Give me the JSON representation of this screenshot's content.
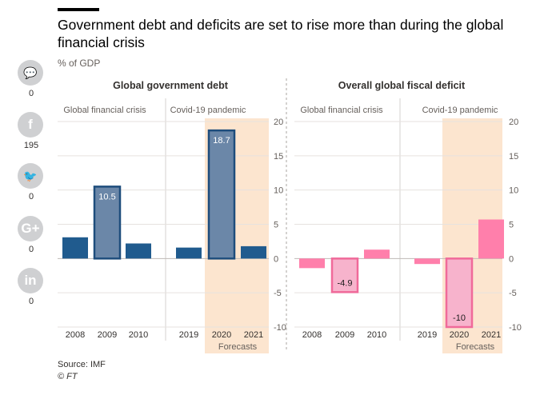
{
  "headline": "Government debt and deficits are set to rise more than during the global financial crisis",
  "unit_label": "% of GDP",
  "source": "Source: IMF",
  "copyright": "© FT",
  "share": [
    {
      "icon": "comment-icon",
      "glyph": "💬",
      "count": "0"
    },
    {
      "icon": "facebook-icon",
      "glyph": "f",
      "count": "195"
    },
    {
      "icon": "twitter-icon",
      "glyph": "🐦",
      "count": "0"
    },
    {
      "icon": "google-plus-icon",
      "glyph": "G+",
      "count": "0"
    },
    {
      "icon": "linkedin-icon",
      "glyph": "in",
      "count": "0"
    }
  ],
  "colors": {
    "debt": "#205b8e",
    "debt_highlight": "#6b87a8",
    "debt_outline": "#1e4d7c",
    "deficit": "#ff7fab",
    "deficit_highlight": "#f7b3cc",
    "deficit_outline": "#f06a9a",
    "forecast_band": "#fce5cf"
  },
  "chart_data": [
    {
      "type": "bar",
      "title": "Global government debt",
      "groups": [
        {
          "label": "Global financial crisis",
          "categories": [
            "2008",
            "2009",
            "2010"
          ],
          "values": [
            3.1,
            10.5,
            2.2
          ],
          "highlight": [
            false,
            true,
            false
          ]
        },
        {
          "label": "Covid-19 pandemic",
          "categories": [
            "2019",
            "2020",
            "2021"
          ],
          "values": [
            1.6,
            18.7,
            1.8
          ],
          "highlight": [
            false,
            true,
            false
          ]
        }
      ],
      "data_labels": {
        "2009": "10.5",
        "2020": "18.7"
      },
      "forecast_categories": [
        "2020",
        "2021"
      ],
      "forecast_label": "Forecasts",
      "ylim": [
        -10,
        20
      ],
      "yticks": [
        "20",
        "15",
        "10",
        "5",
        "0",
        "-5",
        "-10"
      ],
      "y_axis_side": "right"
    },
    {
      "type": "bar",
      "title": "Overall global fiscal deficit",
      "groups": [
        {
          "label": "Global financial crisis",
          "categories": [
            "2008",
            "2009",
            "2010"
          ],
          "values": [
            -1.4,
            -4.9,
            1.3
          ],
          "highlight": [
            false,
            true,
            false
          ]
        },
        {
          "label": "Covid-19 pandemic",
          "categories": [
            "2019",
            "2020",
            "2021"
          ],
          "values": [
            -0.8,
            -10,
            5.7
          ],
          "highlight": [
            false,
            true,
            false
          ]
        }
      ],
      "data_labels": {
        "2009": "-4.9",
        "2020": "-10"
      },
      "forecast_categories": [
        "2020",
        "2021"
      ],
      "forecast_label": "Forecasts",
      "ylim": [
        -10,
        20
      ],
      "yticks": [
        "20",
        "15",
        "10",
        "5",
        "0",
        "-5",
        "-10"
      ],
      "y_axis_side": "right"
    }
  ]
}
